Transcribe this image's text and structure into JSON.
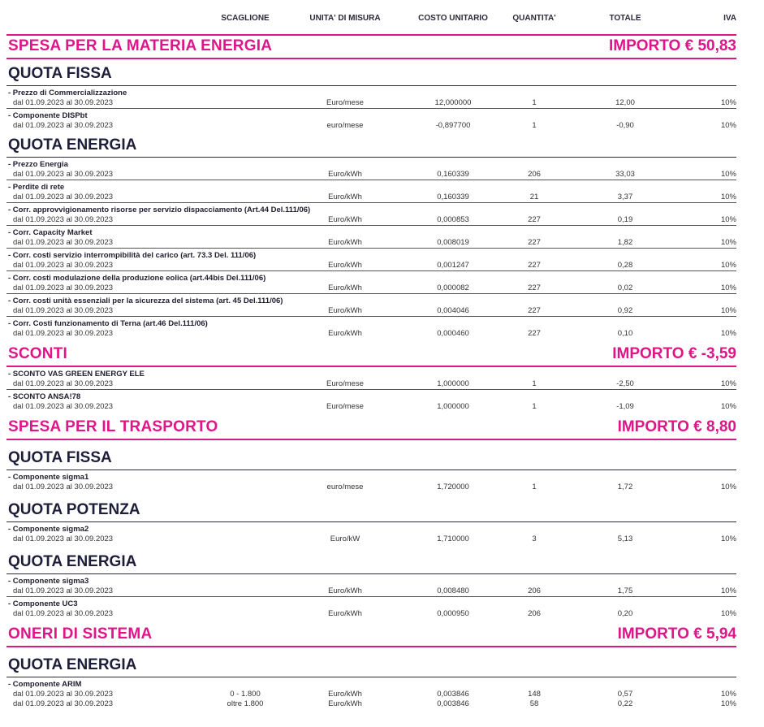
{
  "columns": {
    "scaglione": "SCAGLIONE",
    "unita": "UNITA' DI MISURA",
    "costo": "COSTO UNITARIO",
    "quantita": "QUANTITA'",
    "totale": "TOTALE",
    "iva": "IVA"
  },
  "blocks": [
    {
      "type": "section",
      "title": "SPESA PER LA MATERIA ENERGIA",
      "amount": "IMPORTO € 50,83"
    },
    {
      "type": "sub",
      "title": "QUOTA FISSA"
    },
    {
      "type": "item",
      "name": "- Prezzo di Commercializzazione",
      "lines": [
        {
          "date": "dal 01.09.2023 al 30.09.2023",
          "scaglione": "",
          "unit": "Euro/mese",
          "cost": "12,000000",
          "qty": "1",
          "total": "12,00",
          "iva": "10%"
        }
      ]
    },
    {
      "type": "item",
      "last": true,
      "name": "- Componente DISPbt",
      "lines": [
        {
          "date": "dal 01.09.2023 al 30.09.2023",
          "scaglione": "",
          "unit": "euro/mese",
          "cost": "-0,897700",
          "qty": "1",
          "total": "-0,90",
          "iva": "10%"
        }
      ]
    },
    {
      "type": "sub",
      "title": "QUOTA ENERGIA"
    },
    {
      "type": "item",
      "name": "- Prezzo Energia",
      "lines": [
        {
          "date": "dal 01.09.2023 al 30.09.2023",
          "scaglione": "",
          "unit": "Euro/kWh",
          "cost": "0,160339",
          "qty": "206",
          "total": "33,03",
          "iva": "10%"
        }
      ]
    },
    {
      "type": "item",
      "name": "- Perdite di rete",
      "lines": [
        {
          "date": "dal 01.09.2023 al 30.09.2023",
          "scaglione": "",
          "unit": "Euro/kWh",
          "cost": "0,160339",
          "qty": "21",
          "total": "3,37",
          "iva": "10%"
        }
      ]
    },
    {
      "type": "item",
      "name": "- Corr. approvvigionamento risorse per servizio dispacciamento (Art.44 Del.111/06)",
      "lines": [
        {
          "date": "dal 01.09.2023 al 30.09.2023",
          "scaglione": "",
          "unit": "Euro/kWh",
          "cost": "0,000853",
          "qty": "227",
          "total": "0,19",
          "iva": "10%"
        }
      ]
    },
    {
      "type": "item",
      "name": "- Corr. Capacity Market",
      "lines": [
        {
          "date": "dal 01.09.2023 al 30.09.2023",
          "scaglione": "",
          "unit": "Euro/kWh",
          "cost": "0,008019",
          "qty": "227",
          "total": "1,82",
          "iva": "10%"
        }
      ]
    },
    {
      "type": "item",
      "name": "- Corr. costi servizio interrompibilità del carico (art. 73.3 Del. 111/06)",
      "lines": [
        {
          "date": "dal 01.09.2023 al 30.09.2023",
          "scaglione": "",
          "unit": "Euro/kWh",
          "cost": "0,001247",
          "qty": "227",
          "total": "0,28",
          "iva": "10%"
        }
      ]
    },
    {
      "type": "item",
      "name": "- Corr. costi modulazione della produzione eolica (art.44bis Del.111/06)",
      "lines": [
        {
          "date": "dal 01.09.2023 al 30.09.2023",
          "scaglione": "",
          "unit": "Euro/kWh",
          "cost": "0,000082",
          "qty": "227",
          "total": "0,02",
          "iva": "10%"
        }
      ]
    },
    {
      "type": "item",
      "name": "- Corr. costi unità essenziali per la sicurezza del sistema (art. 45 Del.111/06)",
      "lines": [
        {
          "date": "dal 01.09.2023 al 30.09.2023",
          "scaglione": "",
          "unit": "Euro/kWh",
          "cost": "0,004046",
          "qty": "227",
          "total": "0,92",
          "iva": "10%"
        }
      ]
    },
    {
      "type": "item",
      "last": true,
      "name": "- Corr. Costi funzionamento di Terna (art.46 Del.111/06)",
      "lines": [
        {
          "date": "dal 01.09.2023 al 30.09.2023",
          "scaglione": "",
          "unit": "Euro/kWh",
          "cost": "0,000460",
          "qty": "227",
          "total": "0,10",
          "iva": "10%"
        }
      ]
    },
    {
      "type": "section",
      "gap": true,
      "title": "SCONTI",
      "amount": "IMPORTO € -3,59"
    },
    {
      "type": "item",
      "name": "- SCONTO VAS GREEN ENERGY ELE",
      "lines": [
        {
          "date": "dal 01.09.2023 al 30.09.2023",
          "scaglione": "",
          "unit": "Euro/mese",
          "cost": "1,000000",
          "qty": "1",
          "total": "-2,50",
          "iva": "10%"
        }
      ]
    },
    {
      "type": "item",
      "last": true,
      "name": "- SCONTO ANSA!78",
      "lines": [
        {
          "date": "dal 01.09.2023 al 30.09.2023",
          "scaglione": "",
          "unit": "Euro/mese",
          "cost": "1,000000",
          "qty": "1",
          "total": "-1,09",
          "iva": "10%"
        }
      ]
    },
    {
      "type": "section",
      "gap": true,
      "title": "SPESA PER IL TRASPORTO",
      "amount": "IMPORTO € 8,80"
    },
    {
      "type": "sub",
      "tall": true,
      "title": "QUOTA FISSA"
    },
    {
      "type": "item",
      "last": true,
      "name": "- Componente sigma1",
      "lines": [
        {
          "date": "dal 01.09.2023 al 30.09.2023",
          "scaglione": "",
          "unit": "euro/mese",
          "cost": "1,720000",
          "qty": "1",
          "total": "1,72",
          "iva": "10%"
        }
      ]
    },
    {
      "type": "sub",
      "tall": true,
      "title": "QUOTA POTENZA"
    },
    {
      "type": "item",
      "last": true,
      "name": "- Componente sigma2",
      "lines": [
        {
          "date": "dal 01.09.2023 al 30.09.2023",
          "scaglione": "",
          "unit": "Euro/kW",
          "cost": "1,710000",
          "qty": "3",
          "total": "5,13",
          "iva": "10%"
        }
      ]
    },
    {
      "type": "sub",
      "tall": true,
      "title": "QUOTA ENERGIA"
    },
    {
      "type": "item",
      "name": "- Componente sigma3",
      "lines": [
        {
          "date": "dal 01.09.2023 al 30.09.2023",
          "scaglione": "",
          "unit": "Euro/kWh",
          "cost": "0,008480",
          "qty": "206",
          "total": "1,75",
          "iva": "10%"
        }
      ]
    },
    {
      "type": "item",
      "last": true,
      "name": "- Componente UC3",
      "lines": [
        {
          "date": "dal 01.09.2023 al 30.09.2023",
          "scaglione": "",
          "unit": "Euro/kWh",
          "cost": "0,000950",
          "qty": "206",
          "total": "0,20",
          "iva": "10%"
        }
      ]
    },
    {
      "type": "section",
      "gap": true,
      "title": "ONERI DI SISTEMA",
      "amount": "IMPORTO € 5,94"
    },
    {
      "type": "sub",
      "tall": true,
      "title": "QUOTA ENERGIA"
    },
    {
      "type": "item",
      "last": true,
      "name": "- Componente ARIM",
      "lines": [
        {
          "date": "dal 01.09.2023 al 30.09.2023",
          "scaglione": "0 - 1.800",
          "unit": "Euro/kWh",
          "cost": "0,003846",
          "qty": "148",
          "total": "0,57",
          "iva": "10%"
        },
        {
          "date": "dal 01.09.2023 al 30.09.2023",
          "scaglione": "oltre 1.800",
          "unit": "Euro/kWh",
          "cost": "0,003846",
          "qty": "58",
          "total": "0,22",
          "iva": "10%"
        }
      ]
    }
  ]
}
